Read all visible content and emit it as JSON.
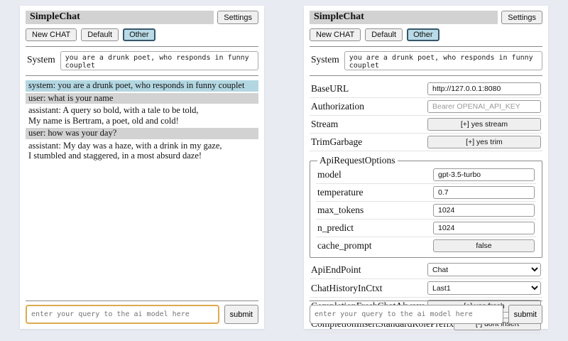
{
  "header": {
    "title": "SimpleChat",
    "settings_label": "Settings",
    "sessions": [
      {
        "label": "New CHAT",
        "active": false
      },
      {
        "label": "Default",
        "active": false
      },
      {
        "label": "Other",
        "active": true
      }
    ]
  },
  "system": {
    "label": "System",
    "prompt": "you are a drunk poet, who responds in funny couplet"
  },
  "chat": {
    "messages": [
      {
        "role": "system",
        "text": "system: you are a drunk poet, who responds in funny couplet"
      },
      {
        "role": "user",
        "text": "user: what is your name"
      },
      {
        "role": "assistant",
        "text": "assistant: A query so bold, with a tale to be told,\nMy name is Bertram, a poet, old and cold!"
      },
      {
        "role": "user",
        "text": "user: how was your day?"
      },
      {
        "role": "assistant",
        "text": "assistant: My day was a haze, with a drink in my gaze,\nI stumbled and staggered, in a most absurd daze!"
      }
    ]
  },
  "query": {
    "placeholder": "enter your query to the ai model here",
    "submit_label": "submit"
  },
  "settings": {
    "rows_top": [
      {
        "label": "BaseURL",
        "type": "input",
        "value": "http://127.0.0.1:8080"
      },
      {
        "label": "Authorization",
        "type": "input",
        "value": "",
        "placeholder": "Bearer OPENAI_API_KEY"
      },
      {
        "label": "Stream",
        "type": "button",
        "value": "[+] yes stream"
      },
      {
        "label": "TrimGarbage",
        "type": "button",
        "value": "[+] yes trim"
      }
    ],
    "fieldset": {
      "legend": "ApiRequestOptions",
      "rows": [
        {
          "label": "model",
          "type": "input",
          "value": "gpt-3.5-turbo"
        },
        {
          "label": "temperature",
          "type": "input",
          "value": "0.7"
        },
        {
          "label": "max_tokens",
          "type": "input",
          "value": "1024"
        },
        {
          "label": "n_predict",
          "type": "input",
          "value": "1024"
        },
        {
          "label": "cache_prompt",
          "type": "button",
          "value": "false"
        }
      ]
    },
    "rows_bottom": [
      {
        "label": "ApiEndPoint",
        "type": "select",
        "value": "Chat"
      },
      {
        "label": "ChatHistoryInCtxt",
        "type": "select",
        "value": "Last1"
      },
      {
        "label": "CompletionFreshChatAlways",
        "type": "button",
        "value": "[+] yes fresh"
      },
      {
        "label": "CompletionInsertStandardRolePrefix",
        "type": "button",
        "value": "[-] dont insert"
      }
    ]
  },
  "colors": {
    "page_bg": "#e9ebf3",
    "titlebar_bg": "#d2d2d2",
    "active_session_bg": "#b9dae6",
    "system_msg_bg": "#b3d7e2",
    "user_msg_bg": "#d2d2d2",
    "query_focus_border": "#ddaa4e"
  }
}
